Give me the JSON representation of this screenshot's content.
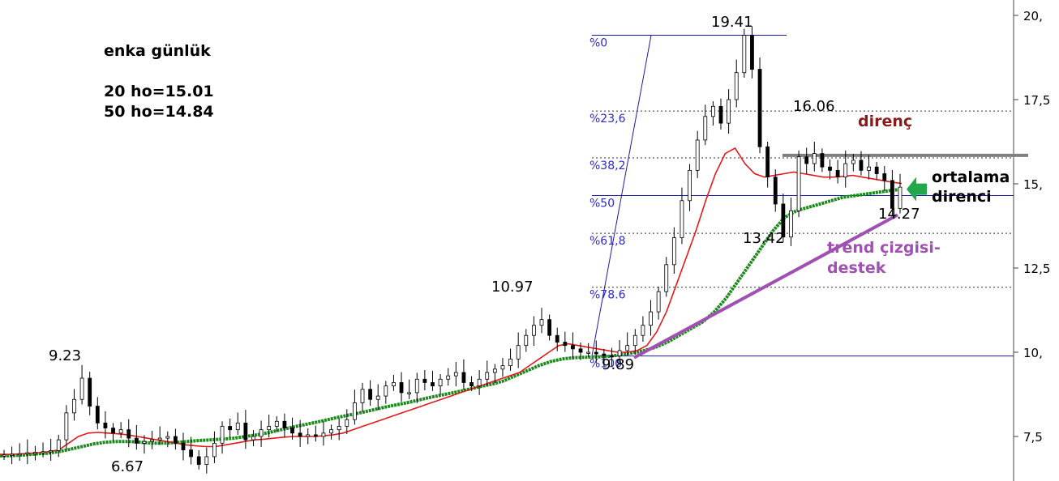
{
  "chart_data": {
    "type": "line",
    "y_axis": {
      "side": "right",
      "range": [
        6.0,
        20.0
      ],
      "ticks": [
        "20,",
        "17,5",
        "15,",
        "12,5",
        "10,",
        "7,5"
      ],
      "tick_values": [
        20,
        17.5,
        15,
        12.5,
        10,
        7.5
      ]
    },
    "grid": false,
    "series": [
      {
        "color": "#000000"
      },
      {
        "color": "#e31a1c"
      },
      {
        "color": "#1a8a1a"
      }
    ],
    "price": [
      6.95,
      6.97,
      6.99,
      7.02,
      7.03,
      7.05,
      7.08,
      7.4,
      8.2,
      8.6,
      9.23,
      8.4,
      7.9,
      7.75,
      7.6,
      7.7,
      7.45,
      7.3,
      7.35,
      7.4,
      7.45,
      7.5,
      7.3,
      7.1,
      6.9,
      6.67,
      6.9,
      7.3,
      7.8,
      7.7,
      7.9,
      7.4,
      7.5,
      7.7,
      7.8,
      7.95,
      7.75,
      7.6,
      7.5,
      7.55,
      7.5,
      7.6,
      7.7,
      7.8,
      8.0,
      8.5,
      8.9,
      8.6,
      8.7,
      9.0,
      9.1,
      8.8,
      8.8,
      9.2,
      9.1,
      9.0,
      9.2,
      9.3,
      9.4,
      9.1,
      9.0,
      9.2,
      9.4,
      9.5,
      9.6,
      9.8,
      10.2,
      10.5,
      10.8,
      10.97,
      10.5,
      10.3,
      10.2,
      10.1,
      10.0,
      10.0,
      9.95,
      9.9,
      9.89,
      10.05,
      10.2,
      10.5,
      10.8,
      11.2,
      11.8,
      12.6,
      13.4,
      14.5,
      15.4,
      16.3,
      17.0,
      17.3,
      16.8,
      17.5,
      18.3,
      19.41,
      18.4,
      16.1,
      15.2,
      14.4,
      13.42,
      14.2,
      15.8,
      15.6,
      15.9,
      15.5,
      15.4,
      15.2,
      15.6,
      15.7,
      15.4,
      15.5,
      15.3,
      15.1,
      14.27,
      14.9
    ],
    "ma20": [
      6.97,
      6.97,
      6.98,
      7.0,
      7.02,
      7.05,
      7.1,
      7.3,
      7.5,
      7.6,
      7.62,
      7.6,
      7.58,
      7.55,
      7.5,
      7.45,
      7.4,
      7.35,
      7.3,
      7.25,
      7.22,
      7.2,
      7.2,
      7.25,
      7.3,
      7.35,
      7.4,
      7.42,
      7.45,
      7.48,
      7.5,
      7.5,
      7.5,
      7.52,
      7.55,
      7.6,
      7.7,
      7.8,
      7.9,
      8.0,
      8.1,
      8.2,
      8.3,
      8.4,
      8.5,
      8.6,
      8.7,
      8.8,
      8.9,
      9.0,
      9.1,
      9.2,
      9.3,
      9.4,
      9.6,
      9.8,
      10.0,
      10.2,
      10.25,
      10.2,
      10.15,
      10.1,
      10.05,
      10.0,
      10.0,
      10.05,
      10.2,
      10.6,
      11.2,
      12.0,
      12.8,
      13.6,
      14.5,
      15.3,
      15.9,
      16.06,
      15.6,
      15.3,
      15.2,
      15.25,
      15.3,
      15.35,
      15.3,
      15.25,
      15.2,
      15.2,
      15.22,
      15.25,
      15.2,
      15.15,
      15.1,
      15.05,
      15.01
    ],
    "ma50": [
      6.92,
      6.93,
      6.95,
      6.98,
      7.0,
      7.05,
      7.12,
      7.2,
      7.28,
      7.33,
      7.35,
      7.35,
      7.33,
      7.3,
      7.3,
      7.32,
      7.35,
      7.38,
      7.4,
      7.42,
      7.45,
      7.5,
      7.55,
      7.62,
      7.7,
      7.78,
      7.85,
      7.92,
      8.0,
      8.08,
      8.15,
      8.22,
      8.3,
      8.38,
      8.45,
      8.52,
      8.6,
      8.68,
      8.75,
      8.82,
      8.9,
      8.98,
      9.05,
      9.15,
      9.3,
      9.45,
      9.6,
      9.72,
      9.8,
      9.84,
      9.85,
      9.86,
      9.88,
      9.92,
      9.98,
      10.05,
      10.15,
      10.3,
      10.5,
      10.7,
      10.9,
      11.2,
      11.6,
      12.1,
      12.6,
      13.1,
      13.6,
      14.0,
      14.2,
      14.3,
      14.4,
      14.5,
      14.6,
      14.65,
      14.7,
      14.75,
      14.8,
      14.84
    ],
    "fibonacci": {
      "high": 19.41,
      "low": 9.89,
      "levels": [
        {
          "label": "%0",
          "value": 19.41
        },
        {
          "label": "%23,6",
          "value": 17.16
        },
        {
          "label": "%38,2",
          "value": 15.77
        },
        {
          "label": "%50",
          "value": 14.65
        },
        {
          "label": "%61,8",
          "value": 13.53
        },
        {
          "label": "%78.6",
          "value": 11.93
        },
        {
          "label": "%100",
          "value": 9.89
        }
      ]
    },
    "annotations": {
      "point_labels": [
        "9.23",
        "6.67",
        "10.97",
        "9.89",
        "19.41",
        "16.06",
        "13.42",
        "14.27"
      ],
      "resistance": {
        "label": "direnç",
        "value": 16.06,
        "color": "#808080"
      },
      "trend": {
        "label_line1": "trend çizgisi-",
        "label_line2": "destek",
        "from": 9.89,
        "to": 14.27,
        "color": "#a050b0"
      },
      "ma_resistance": {
        "label_line1": "ortalama",
        "label_line2": "direnci",
        "arrow_color": "#22a84a"
      }
    },
    "info": {
      "title": "enka günlük",
      "ma20_text": "20 ho=15.01",
      "ma50_text": "50 ho=14.84"
    }
  }
}
